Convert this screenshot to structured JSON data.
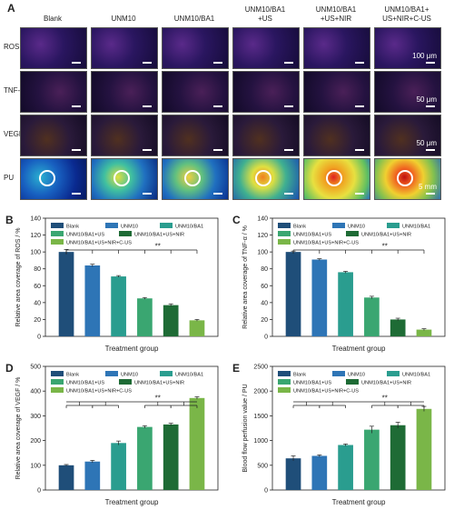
{
  "panel_a": {
    "label": "A",
    "columns": [
      "Blank",
      "UNM10",
      "UNM10/BA1",
      "UNM10/BA1\n+US",
      "UNM10/BA1\n+US+NIR",
      "UNM10/BA1+\nUS+NIR+C-US"
    ],
    "rows": [
      "ROS",
      "TNF-α",
      "VEGF",
      "PU"
    ],
    "scale_labels": [
      "100 μm",
      "50 μm",
      "50 μm",
      "5 mm"
    ]
  },
  "legend_labels": [
    "Blank",
    "UNM10",
    "UNM10/BA1",
    "UNM10/BA1+US",
    "UNM10/BA1+US+NIR",
    "UNM10/BA1+US+NIR+C-US"
  ],
  "colors": [
    "#1f4e79",
    "#2e75b6",
    "#2a9d8f",
    "#3aa671",
    "#1e6b35",
    "#7ab648"
  ],
  "chart_data": [
    {
      "panel": "B",
      "type": "bar",
      "categories": [
        "Blank",
        "UNM10",
        "UNM10/BA1",
        "UNM10/BA1+US",
        "UNM10/BA1+US+NIR",
        "UNM10/BA1+US+NIR+C-US"
      ],
      "values": [
        100,
        84,
        71,
        45,
        37,
        19
      ],
      "errors": [
        3,
        1.5,
        1,
        1,
        1.5,
        1
      ],
      "xlabel": "Treatment group",
      "ylabel": "Relative area coverage of ROS / %",
      "ylim": [
        0,
        140
      ],
      "yticks": [
        0,
        20,
        40,
        60,
        80,
        100,
        120,
        140
      ],
      "significance": "**"
    },
    {
      "panel": "C",
      "type": "bar",
      "categories": [
        "Blank",
        "UNM10",
        "UNM10/BA1",
        "UNM10/BA1+US",
        "UNM10/BA1+US+NIR",
        "UNM10/BA1+US+NIR+C-US"
      ],
      "values": [
        100,
        91,
        76,
        46,
        20,
        8
      ],
      "errors": [
        1,
        1,
        1,
        1.5,
        1.5,
        1
      ],
      "xlabel": "Treatment group",
      "ylabel": "Relative area coverage of TNF-α / %",
      "ylim": [
        0,
        140
      ],
      "yticks": [
        0,
        20,
        40,
        60,
        80,
        100,
        120,
        140
      ],
      "significance": "**"
    },
    {
      "panel": "D",
      "type": "bar",
      "categories": [
        "Blank",
        "UNM10",
        "UNM10/BA1",
        "UNM10/BA1+US",
        "UNM10/BA1+US+NIR",
        "UNM10/BA1+US+NIR+C-US"
      ],
      "values": [
        100,
        115,
        190,
        255,
        265,
        372
      ],
      "errors": [
        3,
        5,
        8,
        5,
        5,
        5
      ],
      "xlabel": "Treatment group",
      "ylabel": "Relative area coverage of VEGF / %",
      "ylim": [
        0,
        500
      ],
      "yticks": [
        0,
        100,
        200,
        300,
        400,
        500
      ],
      "significance": "**"
    },
    {
      "panel": "E",
      "type": "bar",
      "categories": [
        "Blank",
        "UNM10",
        "UNM10/BA1",
        "UNM10/BA1+US",
        "UNM10/BA1+US+NIR",
        "UNM10/BA1+US+NIR+C-US"
      ],
      "values": [
        640,
        690,
        910,
        1220,
        1310,
        1640
      ],
      "errors": [
        50,
        20,
        20,
        70,
        60,
        50
      ],
      "xlabel": "Treatment group",
      "ylabel": "Blood flow perfusion value / PU",
      "ylim": [
        0,
        2500
      ],
      "yticks": [
        0,
        500,
        1000,
        1500,
        2000,
        2500
      ],
      "significance": "**"
    }
  ]
}
